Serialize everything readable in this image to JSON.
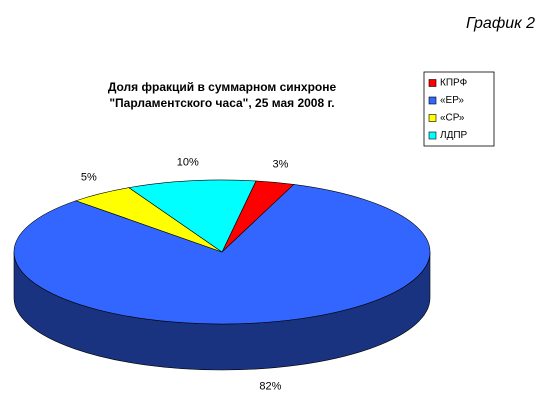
{
  "caption": "График 2",
  "chart_data": {
    "type": "pie3d",
    "title": [
      "Доля фракций в суммарном синхроне",
      "\"Парламентского часа\", 25 мая 2008 г."
    ],
    "categories": [
      "КПРФ",
      "«ЕР»",
      "«СР»",
      "ЛДПР"
    ],
    "values": [
      3,
      82,
      5,
      10
    ],
    "value_labels": [
      "3%",
      "82%",
      "5%",
      "10%"
    ],
    "colors": [
      "#ff0000",
      "#3366ff",
      "#ffff00",
      "#00ffff"
    ],
    "legend": "top-right"
  }
}
